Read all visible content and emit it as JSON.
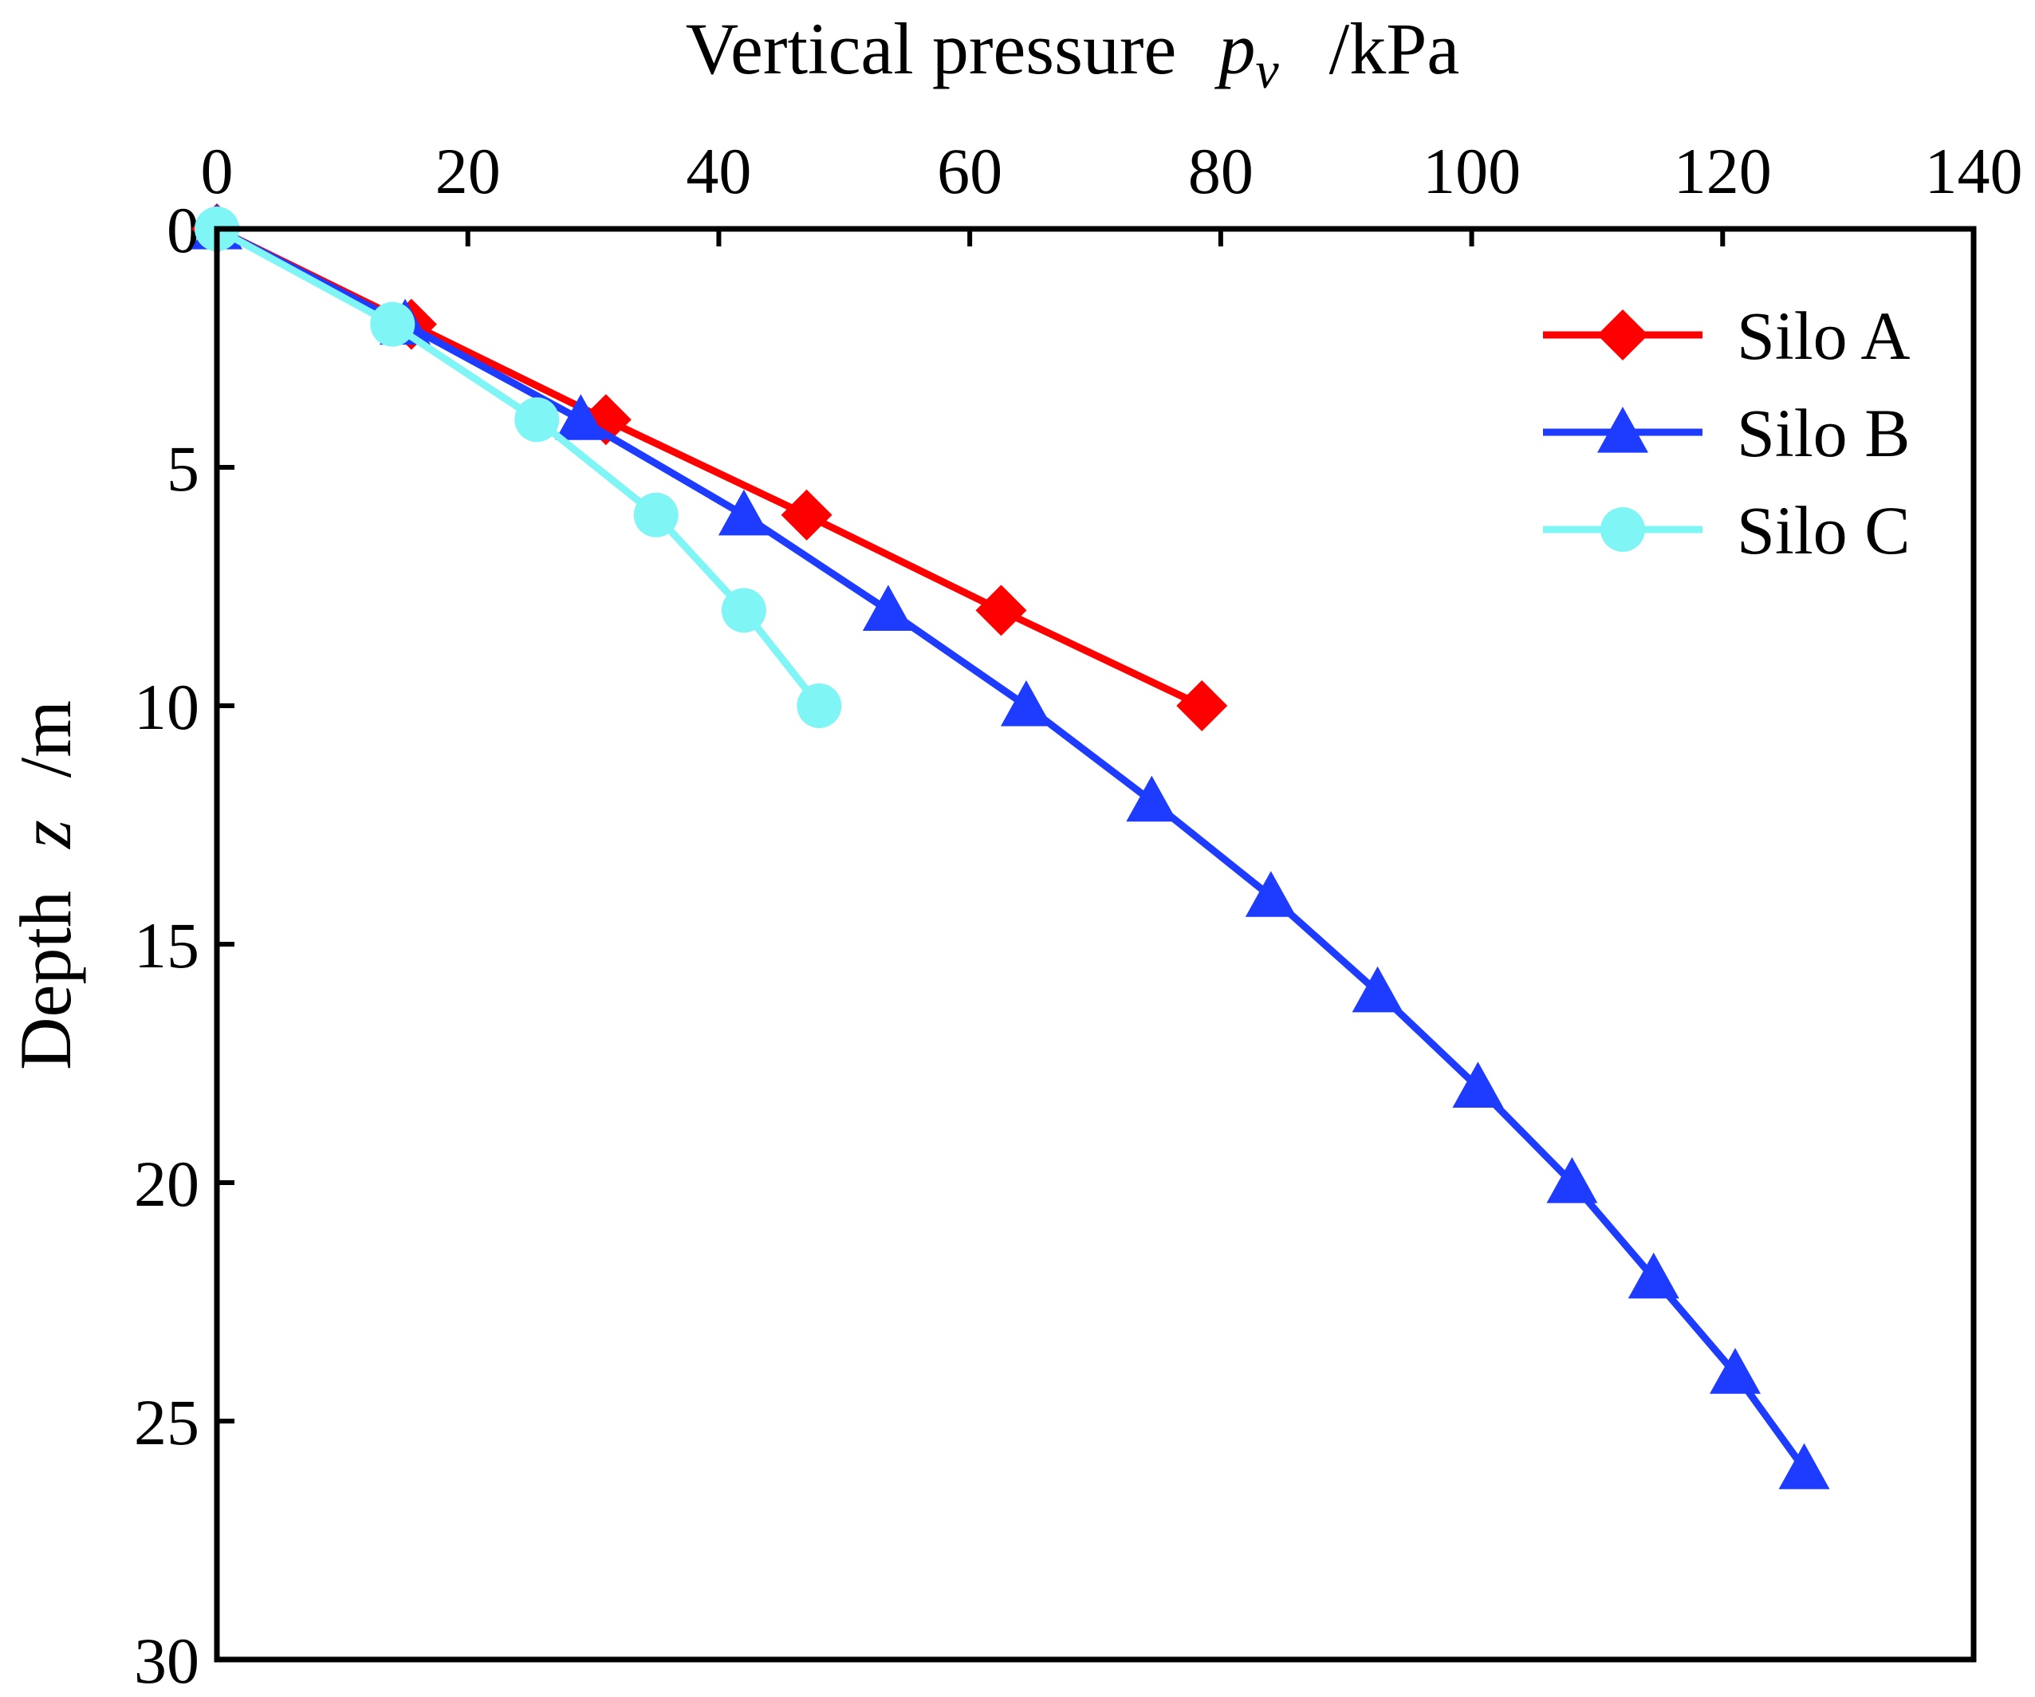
{
  "chart_data": {
    "type": "line",
    "title": "",
    "xlabel": {
      "main": "Vertical pressure",
      "symbol": "p",
      "subscript": "v",
      "unit": "/kPa"
    },
    "ylabel": {
      "main": "Depth",
      "symbol": "z",
      "unit": "/m"
    },
    "xlim": [
      0,
      140
    ],
    "ylim": [
      0,
      30
    ],
    "x_axis_position": "top",
    "y_inverted": true,
    "grid": false,
    "legend_position": "top-right",
    "xticks": [
      0,
      20,
      40,
      60,
      80,
      100,
      120,
      140
    ],
    "yticks": [
      0,
      5,
      10,
      15,
      20,
      25,
      30
    ],
    "series": [
      {
        "name": "Silo A",
        "color": "#ff0000",
        "marker": "diamond",
        "x": [
          0,
          15.5,
          31,
          47,
          62.5,
          78.5
        ],
        "y": [
          0,
          2,
          4,
          6,
          8,
          10
        ]
      },
      {
        "name": "Silo B",
        "color": "#1e3cff",
        "marker": "triangle",
        "x": [
          0,
          15,
          29,
          42,
          53.5,
          64.5,
          74.5,
          84,
          92.5,
          100.5,
          108,
          114.5,
          121,
          126.5
        ],
        "y": [
          0,
          2,
          4,
          6,
          8,
          10,
          12,
          14,
          16,
          18,
          20,
          22,
          24,
          26
        ]
      },
      {
        "name": "Silo C",
        "color": "#7ff5f5",
        "marker": "circle",
        "x": [
          0,
          14,
          25.5,
          35,
          42,
          48
        ],
        "y": [
          0,
          2,
          4,
          6,
          8,
          10
        ]
      }
    ]
  }
}
